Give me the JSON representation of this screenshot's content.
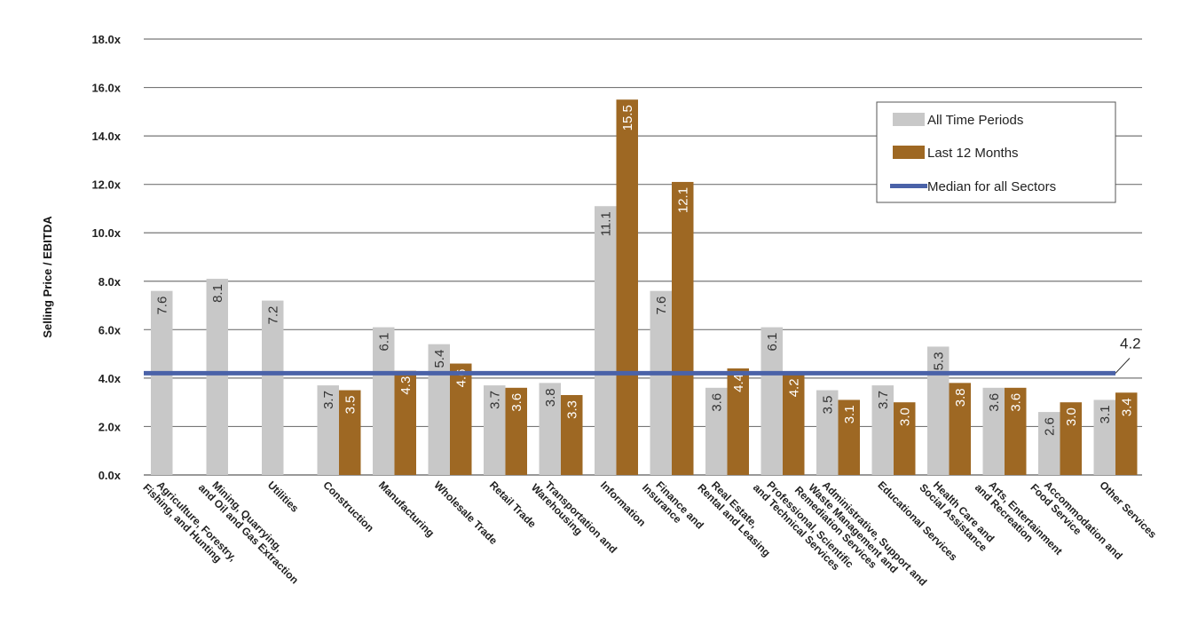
{
  "chart_data": {
    "type": "bar",
    "title": "",
    "xlabel": "",
    "ylabel": "Selling Price / EBITDA",
    "ylim": [
      0,
      18
    ],
    "yticks": [
      "0.0x",
      "2.0x",
      "4.0x",
      "6.0x",
      "8.0x",
      "10.0x",
      "12.0x",
      "14.0x",
      "16.0x",
      "18.0x"
    ],
    "grid": true,
    "legend_position": "top-right",
    "categories": [
      "Agriculture, Forestry,\nFishing, and Hunting",
      "Mining, Quarrying,\nand Oil and Gas Extraction",
      "Utilities",
      "Construction",
      "Manufacturing",
      "Wholesale Trade",
      "Retail Trade",
      "Transportation and\nWarehousing",
      "Information",
      "Finance and\nInsurance",
      "Real Estate,\nRental and Leasing",
      "Professional, Scientific\nand Technical Services",
      "Administrative, Support and\nWaste Management and\nRemediation Services",
      "Educational Services",
      "Health Care and\nSocial Assistance",
      "Arts, Entertainment\nand Recreation",
      "Accommodation and\nFood Service",
      "Other Services"
    ],
    "series": [
      {
        "name": "All Time Periods",
        "color": "#c8c8c8",
        "label_color": "#333333",
        "values": [
          7.6,
          8.1,
          7.2,
          3.7,
          6.1,
          5.4,
          3.7,
          3.8,
          11.1,
          7.6,
          3.6,
          6.1,
          3.5,
          3.7,
          5.3,
          3.6,
          2.6,
          3.1
        ]
      },
      {
        "name": "Last 12 Months",
        "color": "#9e6823",
        "label_color": "#ffffff",
        "values": [
          null,
          null,
          null,
          3.5,
          4.3,
          4.6,
          3.6,
          3.3,
          15.5,
          12.1,
          4.4,
          4.2,
          3.1,
          3.0,
          3.8,
          3.6,
          3.0,
          3.4
        ]
      }
    ],
    "reference_line": {
      "name": "Median for all Sectors",
      "value": 4.2,
      "label": "4.2",
      "color": "#4a62a8"
    }
  }
}
